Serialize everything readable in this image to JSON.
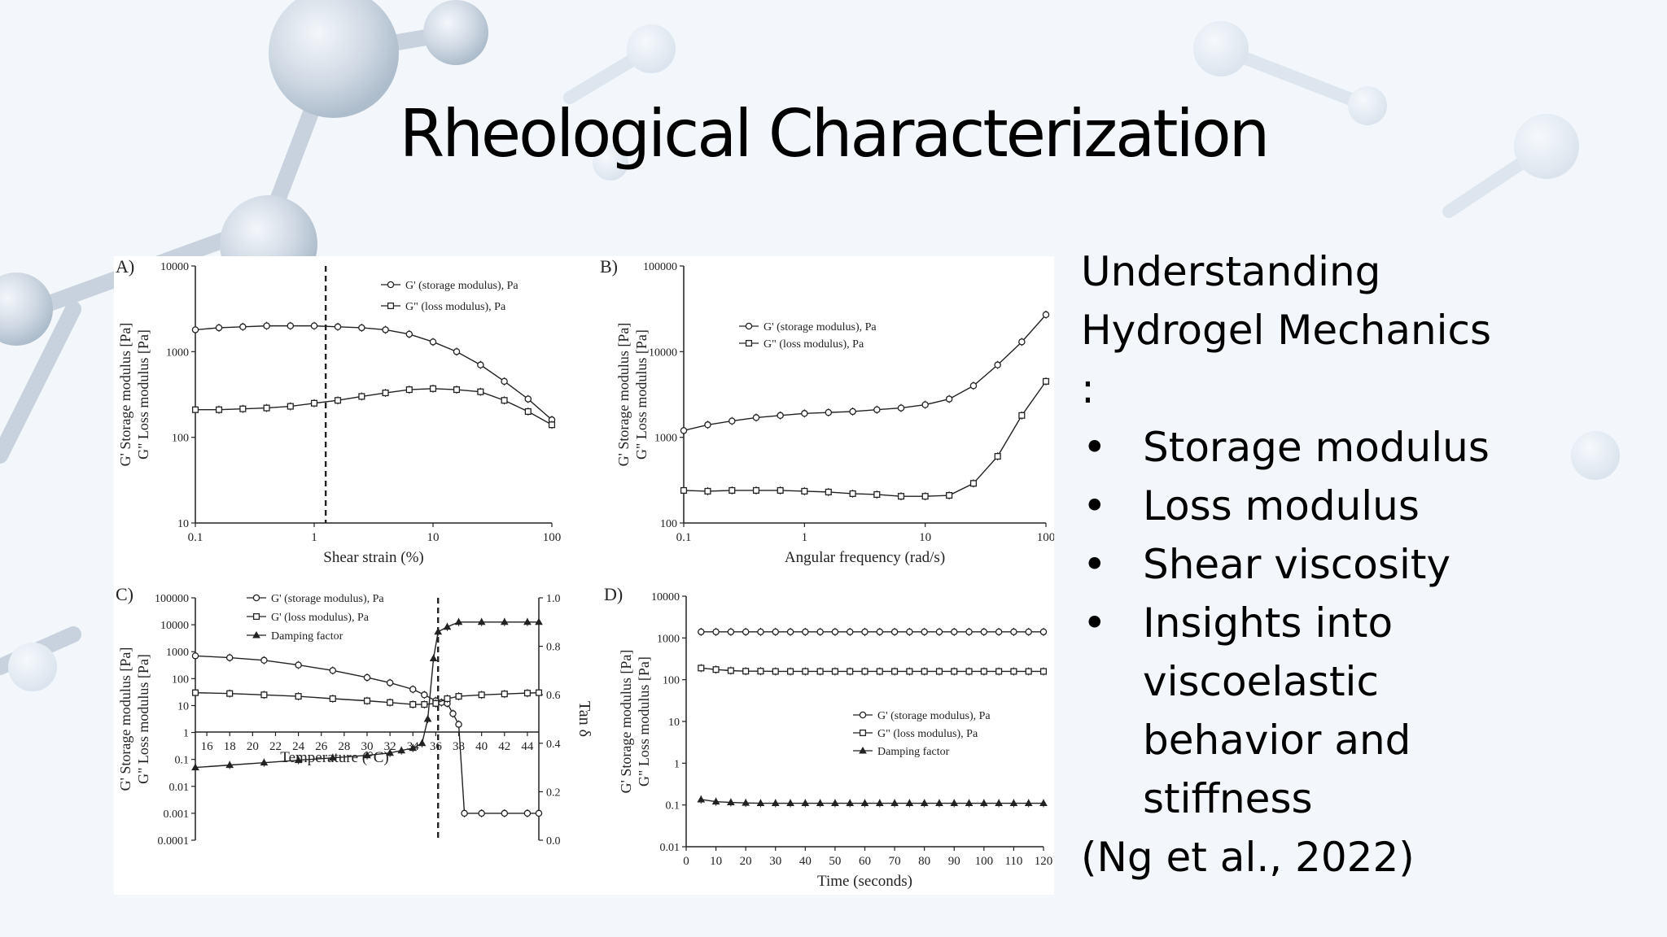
{
  "slide": {
    "title": "Rheological Characterization",
    "intro_lines": [
      "Understanding",
      "Hydrogel Mechanics",
      ":"
    ],
    "bullets": [
      "Storage modulus",
      "Loss modulus",
      "Shear viscosity",
      "Insights into viscoelastic behavior and stiffness"
    ],
    "bullet_lines": [
      [
        "Storage modulus"
      ],
      [
        "Loss modulus"
      ],
      [
        "Shear viscosity"
      ],
      [
        "Insights into",
        "viscoelastic",
        "behavior and",
        "stiffness"
      ]
    ],
    "bullet_symbol": "•",
    "citation": "(Ng et al., 2022)"
  },
  "colors": {
    "ink": "#222222",
    "background": "#f3f6fa",
    "text": "#000000"
  },
  "chart_data": [
    {
      "panel": "A)",
      "type": "line",
      "xscale": "log",
      "yscale": "log",
      "xlabel": "Shear strain (%)",
      "ylabel": [
        "G' Storage modulus [Pa]",
        "G\" Loss modulus [Pa]"
      ],
      "xlim": [
        0.1,
        100
      ],
      "ylim": [
        10,
        10000
      ],
      "xticks": [
        0.1,
        1,
        10,
        100
      ],
      "xtick_labels": [
        "0.1",
        "1",
        "10",
        "100"
      ],
      "yticks": [
        10,
        100,
        1000,
        10000
      ],
      "ytick_labels": [
        "10",
        "100",
        "1000",
        "10000"
      ],
      "legend_position": "top-right",
      "vline": 1.25,
      "x": [
        0.1,
        0.158,
        0.251,
        0.398,
        0.631,
        1.0,
        1.58,
        2.51,
        3.98,
        6.31,
        10,
        15.8,
        25.1,
        39.8,
        63.1,
        100
      ],
      "series": [
        {
          "name": "G' (storage modulus), Pa",
          "marker": "circle",
          "values": [
            1800,
            1900,
            1950,
            2000,
            2000,
            2000,
            1950,
            1900,
            1800,
            1600,
            1300,
            1000,
            700,
            450,
            280,
            160
          ]
        },
        {
          "name": "G\" (loss modulus), Pa",
          "marker": "square",
          "values": [
            210,
            210,
            215,
            220,
            230,
            250,
            270,
            300,
            330,
            360,
            370,
            360,
            340,
            270,
            200,
            140
          ]
        }
      ]
    },
    {
      "panel": "B)",
      "type": "line",
      "xscale": "log",
      "yscale": "log",
      "xlabel": "Angular frequency (rad/s)",
      "ylabel": [
        "G' Storage modulus [Pa]",
        "G\" Loss modulus [Pa]"
      ],
      "xlim": [
        0.1,
        100
      ],
      "ylim": [
        100,
        100000
      ],
      "xticks": [
        0.1,
        1,
        10,
        100
      ],
      "xtick_labels": [
        "0.1",
        "1",
        "10",
        "100"
      ],
      "yticks": [
        100,
        1000,
        10000,
        100000
      ],
      "ytick_labels": [
        "100",
        "1000",
        "10000",
        "100000"
      ],
      "legend_position": "upper-left",
      "x": [
        0.1,
        0.158,
        0.251,
        0.398,
        0.631,
        1.0,
        1.58,
        2.51,
        3.98,
        6.31,
        10,
        15.8,
        25.1,
        39.8,
        63.1,
        100
      ],
      "series": [
        {
          "name": "G' (storage modulus), Pa",
          "marker": "circle",
          "values": [
            1200,
            1400,
            1550,
            1700,
            1800,
            1900,
            1950,
            2000,
            2100,
            2200,
            2400,
            2800,
            4000,
            7000,
            13000,
            27000
          ]
        },
        {
          "name": "G\" (loss modulus), Pa",
          "marker": "square",
          "values": [
            240,
            235,
            240,
            240,
            240,
            235,
            230,
            220,
            215,
            205,
            205,
            210,
            290,
            600,
            1800,
            4500
          ]
        }
      ]
    },
    {
      "panel": "C)",
      "type": "line",
      "xscale": "linear",
      "yscale": "log",
      "xlabel": "Temperature (°C)",
      "ylabel": [
        "G' Storage modulus [Pa]",
        "G\" Loss modulus [Pa]"
      ],
      "y2label": "Tan δ",
      "xlim": [
        15,
        45
      ],
      "ylim": [
        0.0001,
        100000
      ],
      "y2lim": [
        0.0,
        1.0
      ],
      "xticks": [
        16,
        18,
        20,
        22,
        24,
        26,
        28,
        30,
        32,
        34,
        36,
        38,
        40,
        42,
        44
      ],
      "xtick_labels": [
        "16",
        "18",
        "20",
        "22",
        "24",
        "26",
        "28",
        "30",
        "32",
        "34",
        "36",
        "38",
        "40",
        "42",
        "44"
      ],
      "yticks": [
        0.0001,
        0.001,
        0.01,
        0.1,
        1,
        10,
        100,
        1000,
        10000,
        100000
      ],
      "ytick_labels": [
        "0.0001",
        "0.001",
        "0.01",
        "0.1",
        "1",
        "10",
        "100",
        "1000",
        "10000",
        "100000"
      ],
      "y2ticks": [
        0.0,
        0.2,
        0.4,
        0.6,
        0.8,
        1.0
      ],
      "y2tick_labels": [
        "0.0",
        "0.2",
        "0.4",
        "0.6",
        "0.8",
        "1.0"
      ],
      "legend_position": "top-left",
      "vline": 36.2,
      "series": [
        {
          "name": "G' (storage modulus), Pa",
          "marker": "circle",
          "axis": "left",
          "x": [
            15,
            18,
            21,
            24,
            27,
            30,
            32,
            34,
            35,
            36,
            36.5,
            37,
            37.5,
            38,
            38.5,
            40,
            42,
            44,
            45
          ],
          "values": [
            700,
            600,
            480,
            320,
            200,
            110,
            70,
            40,
            25,
            15,
            13,
            12,
            5,
            2,
            0.001,
            0.001,
            0.001,
            0.001,
            0.001
          ]
        },
        {
          "name": "G' (loss modulus), Pa",
          "marker": "square",
          "axis": "left",
          "x": [
            15,
            18,
            21,
            24,
            27,
            30,
            32,
            34,
            35,
            36,
            37,
            38,
            40,
            42,
            44,
            45
          ],
          "values": [
            30,
            28,
            25,
            22,
            18,
            15,
            13,
            11,
            11,
            12,
            18,
            22,
            25,
            27,
            29,
            30
          ]
        },
        {
          "name": "Damping factor",
          "marker": "triangle",
          "axis": "right",
          "x": [
            15,
            18,
            21,
            24,
            27,
            30,
            32,
            33,
            34,
            34.8,
            35.3,
            35.8,
            36.2,
            37,
            38,
            40,
            42,
            44,
            45
          ],
          "values": [
            0.3,
            0.31,
            0.32,
            0.33,
            0.34,
            0.35,
            0.36,
            0.37,
            0.38,
            0.4,
            0.5,
            0.75,
            0.86,
            0.88,
            0.9,
            0.9,
            0.9,
            0.9,
            0.9
          ]
        }
      ]
    },
    {
      "panel": "D)",
      "type": "line",
      "xscale": "linear",
      "yscale": "log",
      "xlabel": "Time (seconds)",
      "ylabel": [
        "G' Storage modulus [Pa]",
        "G\" Loss modulus [Pa]"
      ],
      "xlim": [
        0,
        120
      ],
      "ylim": [
        0.01,
        10000
      ],
      "xticks": [
        0,
        10,
        20,
        30,
        40,
        50,
        60,
        70,
        80,
        90,
        100,
        110,
        120
      ],
      "xtick_labels": [
        "0",
        "10",
        "20",
        "30",
        "40",
        "50",
        "60",
        "70",
        "80",
        "90",
        "100",
        "110",
        "120"
      ],
      "yticks": [
        0.01,
        0.1,
        1,
        10,
        100,
        1000,
        10000
      ],
      "ytick_labels": [
        "0.01",
        "0.1",
        "1",
        "10",
        "100",
        "1000",
        "10000"
      ],
      "legend_position": "center-right",
      "x": [
        5,
        10,
        15,
        20,
        25,
        30,
        35,
        40,
        45,
        50,
        55,
        60,
        65,
        70,
        75,
        80,
        85,
        90,
        95,
        100,
        105,
        110,
        115,
        120
      ],
      "series": [
        {
          "name": "G' (storage modulus), Pa",
          "marker": "circle",
          "values": [
            1400,
            1400,
            1400,
            1400,
            1400,
            1400,
            1400,
            1400,
            1400,
            1400,
            1400,
            1400,
            1400,
            1400,
            1400,
            1400,
            1400,
            1400,
            1400,
            1400,
            1400,
            1400,
            1400,
            1400
          ]
        },
        {
          "name": "G\" (loss modulus), Pa",
          "marker": "square",
          "values": [
            190,
            175,
            165,
            160,
            160,
            158,
            158,
            158,
            158,
            158,
            158,
            158,
            158,
            158,
            158,
            158,
            158,
            158,
            158,
            158,
            158,
            158,
            158,
            158
          ]
        },
        {
          "name": "Damping factor",
          "marker": "triangle",
          "values": [
            0.135,
            0.12,
            0.115,
            0.112,
            0.11,
            0.11,
            0.11,
            0.11,
            0.11,
            0.11,
            0.11,
            0.11,
            0.11,
            0.11,
            0.11,
            0.11,
            0.11,
            0.11,
            0.11,
            0.11,
            0.11,
            0.11,
            0.11,
            0.11
          ]
        }
      ]
    }
  ]
}
